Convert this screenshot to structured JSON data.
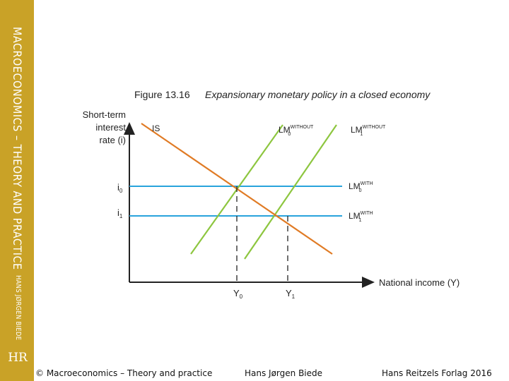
{
  "sidebar": {
    "title": "MACROECONOMICS – THEORY AND PRACTICE",
    "author": "HANS JØRGEN BIEDE",
    "logo": "HR"
  },
  "figure": {
    "number": "Figure 13.16",
    "caption": "Expansionary monetary policy in a closed economy",
    "y_axis_label": [
      "Short-term",
      "interest",
      "rate (i)"
    ],
    "x_axis_label": "National income (Y)",
    "i0": "i",
    "i0_sub": "0",
    "i1": "i",
    "i1_sub": "1",
    "Y0": "Y",
    "Y0_sub": "0",
    "Y1": "Y",
    "Y1_sub": "1",
    "curves": {
      "IS": "IS",
      "lm_base": "LM",
      "lm0_without_sup": "WITHOUT",
      "lm0_without_sub": "0",
      "lm1_without_sup": "WITHOUT",
      "lm1_without_sub": "1",
      "lm0_with_sup": "WITH",
      "lm0_with_sub": "0",
      "lm1_with_sup": "WITH",
      "lm1_with_sub": "1"
    },
    "colors": {
      "is": "#e07b25",
      "lm_without": "#8dc63f",
      "lm_with": "#29a3dc",
      "axis": "#222222"
    }
  },
  "footer": {
    "copyright": "© Macroeconomics – Theory and practice",
    "author": "Hans Jørgen Biede",
    "publisher": "Hans Reitzels Forlag 2016"
  }
}
